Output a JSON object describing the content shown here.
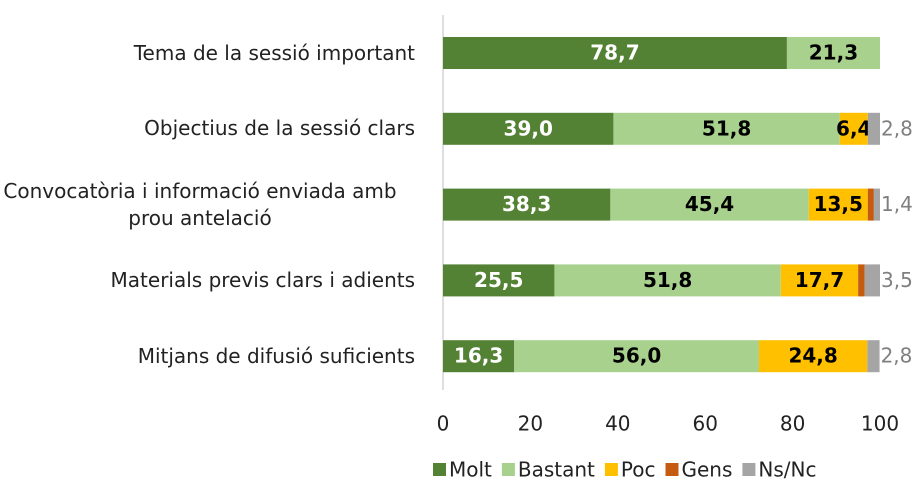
{
  "chart_data": {
    "type": "stacked_barh",
    "categories": [
      "Tema de la sessió important",
      "Objectius de la sessió clars",
      "Convocatòria i informació enviada amb prou antelació",
      "Materials previs clars i adients",
      "Mitjans de difusió suficients"
    ],
    "series": [
      {
        "name": "Molt",
        "color": "#548235",
        "values": [
          78.7,
          39.0,
          38.3,
          25.5,
          16.3
        ],
        "value_labels": [
          "78,7",
          "39,0",
          "38,3",
          "25,5",
          "16,3"
        ]
      },
      {
        "name": "Bastant",
        "color": "#a9d18e",
        "values": [
          21.3,
          51.8,
          45.4,
          51.8,
          56.0
        ],
        "value_labels": [
          "21,3",
          "51,8",
          "45,4",
          "51,8",
          "56,0"
        ]
      },
      {
        "name": "Poc",
        "color": "#ffc000",
        "values": [
          0,
          6.4,
          13.5,
          17.7,
          24.8
        ],
        "value_labels": [
          null,
          "6,4",
          "13,5",
          "17,7",
          "24,8"
        ]
      },
      {
        "name": "Gens",
        "color": "#c55a11",
        "values": [
          0,
          0,
          1.4,
          1.5,
          0
        ]
      },
      {
        "name": "Ns/Nc",
        "color": "#a5a5a5",
        "values": [
          0,
          2.8,
          1.4,
          3.5,
          2.8
        ],
        "value_labels": [
          null,
          "2,8",
          "1,4",
          "3,5",
          "2,8"
        ]
      }
    ],
    "xlim": [
      0,
      100
    ],
    "xticks": [
      0,
      20,
      40,
      60,
      80,
      100
    ],
    "legend": "bottom"
  }
}
